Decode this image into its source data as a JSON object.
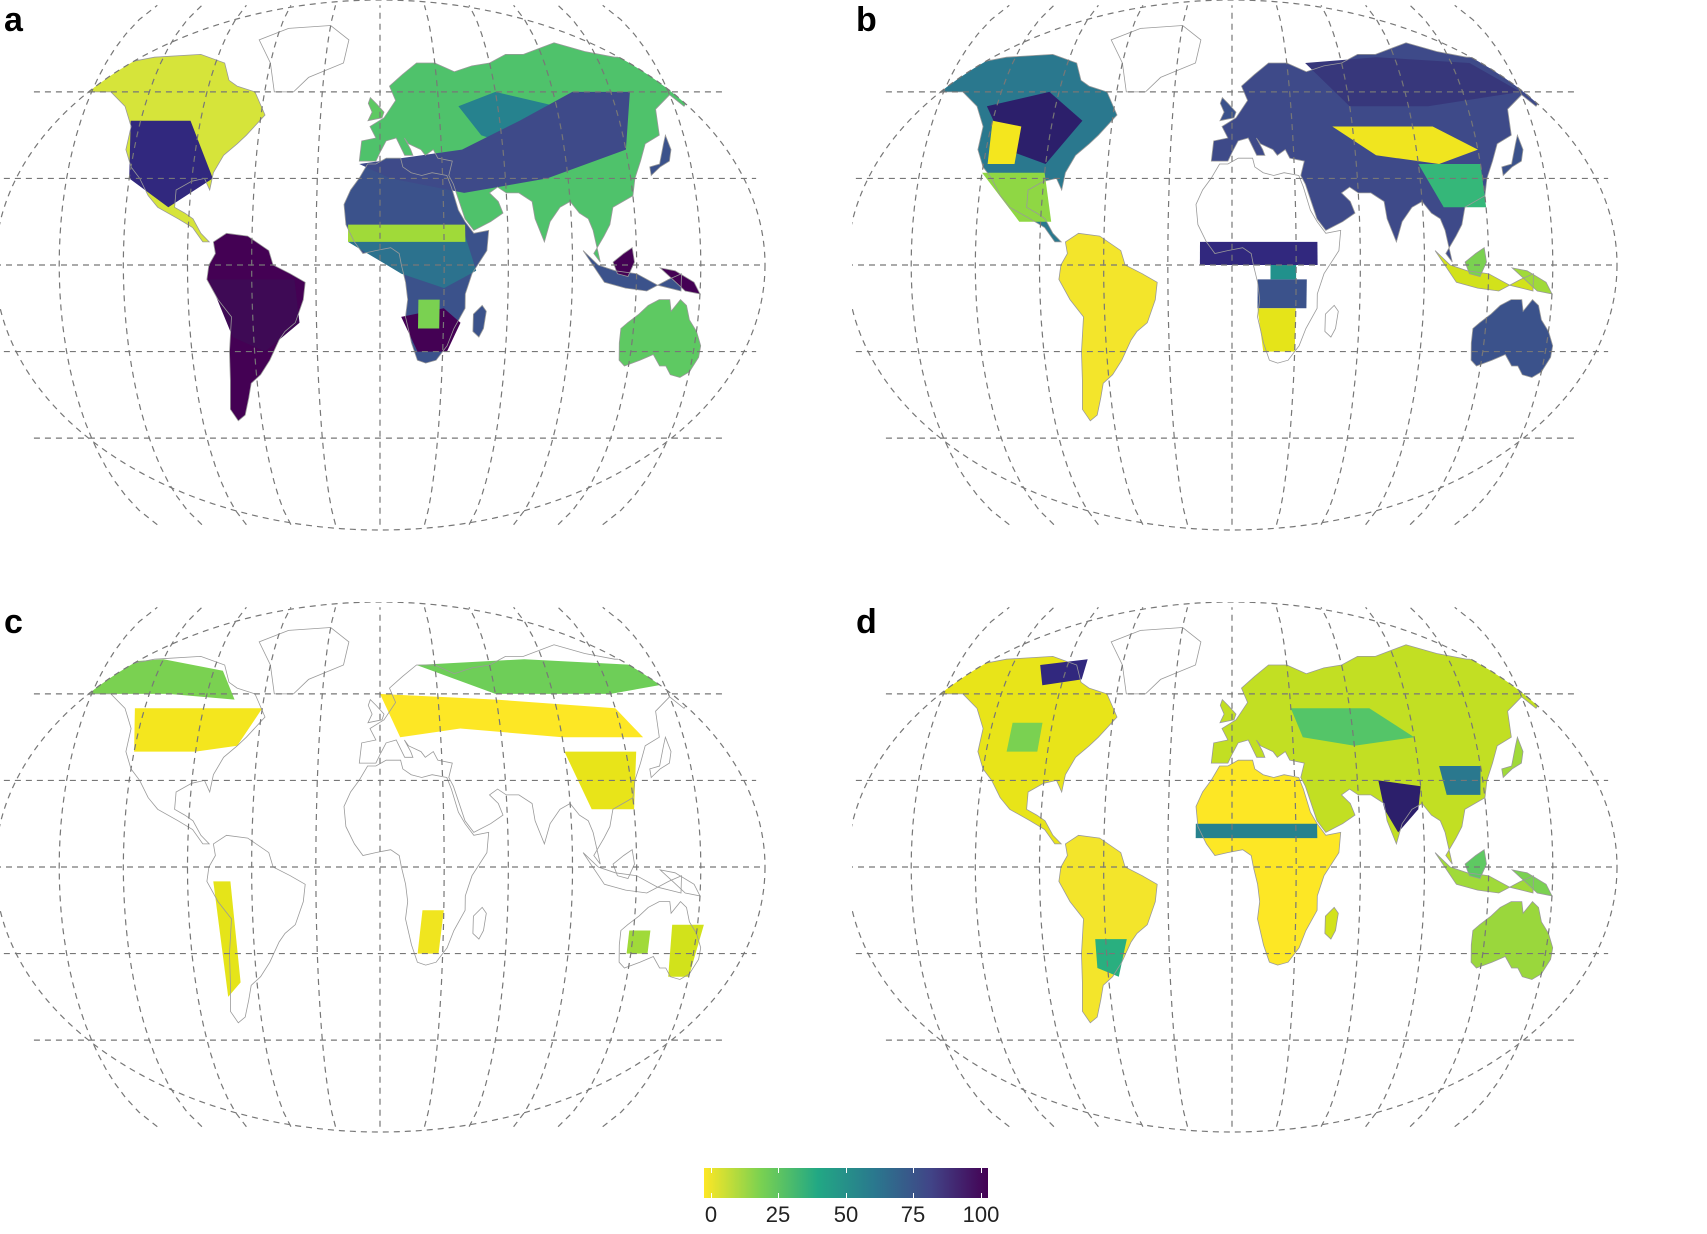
{
  "panels": [
    {
      "id": "a",
      "label": "a",
      "palette": "mixed-dark"
    },
    {
      "id": "b",
      "label": "b",
      "palette": "dark-north-yellow-tropics"
    },
    {
      "id": "c",
      "label": "c",
      "palette": "sparse-yellow"
    },
    {
      "id": "d",
      "label": "d",
      "palette": "mostly-yellow-green"
    }
  ],
  "colorbar": {
    "colormap": "viridis (reversed)",
    "min": 0,
    "max": 100,
    "tick_labels": [
      "0",
      "25",
      "50",
      "75",
      "100"
    ],
    "colors": [
      "#fde725",
      "#7ad151",
      "#22a884",
      "#2a788e",
      "#414487",
      "#440154"
    ]
  },
  "graticule_color": "#777777",
  "coastline_color": "#9a9a9a"
}
